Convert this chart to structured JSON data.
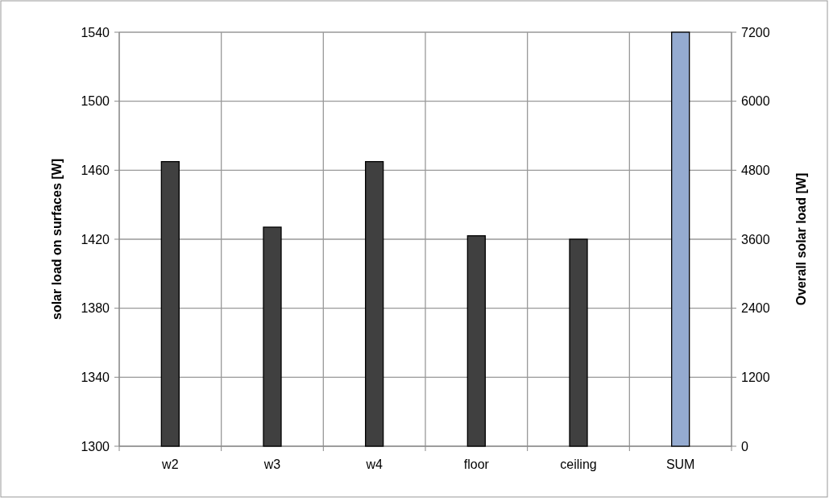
{
  "chart_data": {
    "type": "bar",
    "ylabel": "solar load on surfaces [W]",
    "y2label": "Overall solar load [W]",
    "categories": [
      "w2",
      "w3",
      "w4",
      "floor",
      "ceiling",
      "SUM"
    ],
    "series": [
      {
        "color": "#404040",
        "values": [
          1465,
          1427,
          1465,
          1422,
          1420,
          null
        ]
      },
      {
        "color": "#95abd0",
        "values": [
          null,
          null,
          null,
          null,
          null,
          7200
        ],
        "axis": "y2"
      }
    ],
    "ylim": [
      1300,
      1540
    ],
    "yticks": [
      1300,
      1340,
      1380,
      1420,
      1460,
      1500,
      1540
    ],
    "y2lim": [
      0,
      7200
    ],
    "y2ticks": [
      0,
      1200,
      2400,
      3600,
      4800,
      6000,
      7200
    ],
    "grid": true
  }
}
